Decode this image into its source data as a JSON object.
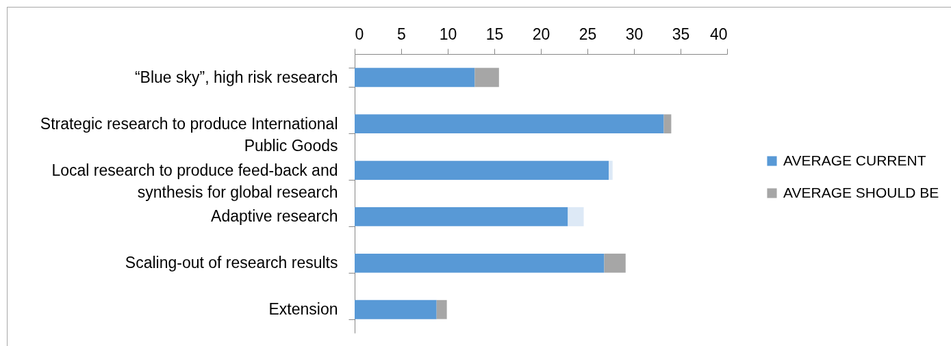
{
  "chart_data": {
    "type": "bar",
    "orientation": "horizontal",
    "stacked": true,
    "categories": [
      "“Blue sky”, high risk research",
      "Strategic research to produce International Public Goods",
      "Local research to produce feed-back and synthesis for global research",
      "Adaptive research",
      "Scaling-out of research results",
      "Extension"
    ],
    "series": [
      {
        "name": "AVERAGE CURRENT",
        "color": "#5899d6",
        "values": [
          12.9,
          33.2,
          27.3,
          22.9,
          26.8,
          8.8
        ]
      },
      {
        "name": "AVERAGE SHOULD BE",
        "color": "#a6a6a6",
        "colors": [
          "#a6a6a6",
          "#a6a6a6",
          "#dde9f6",
          "#dde9f6",
          "#a6a6a6",
          "#a6a6a6"
        ],
        "values": [
          2.6,
          0.8,
          0.4,
          1.7,
          2.3,
          1.1
        ]
      }
    ],
    "xlim": [
      0,
      40
    ],
    "xticks": [
      0,
      5,
      10,
      15,
      20,
      25,
      30,
      35,
      40
    ],
    "legend": "right"
  }
}
